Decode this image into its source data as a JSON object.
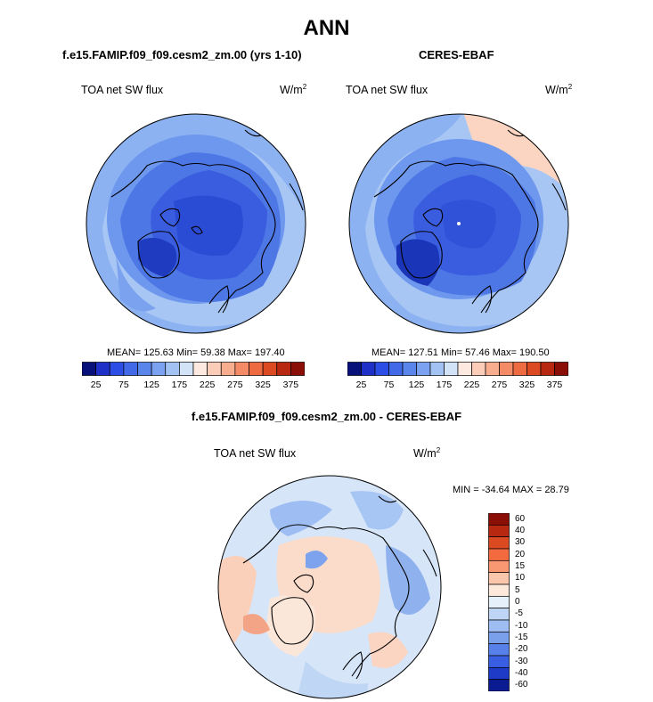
{
  "figure": {
    "title": "ANN",
    "panel1": {
      "case": "f.e15.FAMIP.f09_f09.cesm2_zm.00 (yrs 1-10)",
      "variable": "TOA net SW flux",
      "units_base": "W/m",
      "units_exp": "2",
      "stats": "MEAN= 125.63  Min=  59.38  Max= 197.40"
    },
    "panel2": {
      "case": "CERES-EBAF",
      "variable": "TOA net SW flux",
      "units_base": "W/m",
      "units_exp": "2",
      "stats": "MEAN= 127.51  Min=  57.46  Max= 190.50"
    },
    "panel3": {
      "case": "f.e15.FAMIP.f09_f09.cesm2_zm.00 - CERES-EBAF",
      "variable": "TOA net SW flux",
      "units_base": "W/m",
      "units_exp": "2",
      "stats": "MIN = -34.64 MAX =  28.79"
    }
  },
  "colorbar_top": {
    "colors": [
      "#08107a",
      "#1f30c8",
      "#2c4ee6",
      "#4169e8",
      "#5a86ec",
      "#7ba2f0",
      "#a3c2f4",
      "#d2e3f8",
      "#fde9df",
      "#fbcdb8",
      "#f8ad8f",
      "#f58a66",
      "#ee6a40",
      "#dc4a22",
      "#b82810",
      "#8a0e06"
    ],
    "labels": [
      "25",
      "75",
      "125",
      "175",
      "225",
      "275",
      "325",
      "375"
    ]
  },
  "colorbar_diff": {
    "colors": [
      "#8a0e06",
      "#b82810",
      "#dc4a22",
      "#f26a3e",
      "#f89873",
      "#fac6ac",
      "#fde8dc",
      "#e6f0fa",
      "#bfd5f5",
      "#9ebdf2",
      "#7aa0ec",
      "#5780e8",
      "#3a5ee2",
      "#1e3bc8",
      "#0a1a90"
    ],
    "labels": [
      "60",
      "40",
      "30",
      "20",
      "15",
      "10",
      "5",
      "0",
      "-5",
      "-10",
      "-15",
      "-20",
      "-30",
      "-40",
      "-60"
    ]
  },
  "map_colors": {
    "land_outline": "#000000",
    "ocean_low": "#8db2f2",
    "ocean_mid": "#6b93ec",
    "ice_low": "#3a5de0",
    "ice_deep": "#2342cc",
    "greenland": "#1a35b8",
    "ceres_warm": "#fbd5c2",
    "diff_pos": "#fbd9c6",
    "diff_neg": "#c6d9f5",
    "diff_neg2": "#8fb1ee"
  }
}
